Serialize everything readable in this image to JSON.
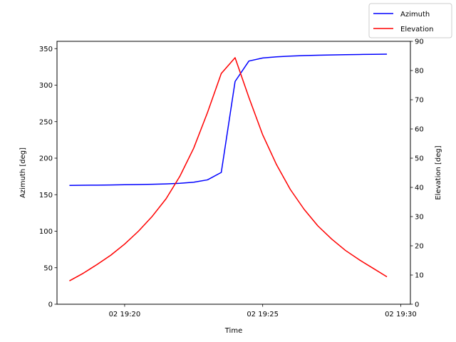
{
  "chart_data": {
    "type": "line",
    "title": "",
    "xlabel": "Time",
    "ylabel_left": "Azimuth [deg]",
    "ylabel_right": "Elevation [deg]",
    "x_unit": "minutes after 02 19:20",
    "xlim": [
      -2.45,
      10.35
    ],
    "ylim_left": [
      0,
      360
    ],
    "ylim_right": [
      0,
      90
    ],
    "x_ticks": [
      {
        "value": 0,
        "label": "02 19:20"
      },
      {
        "value": 5,
        "label": "02 19:25"
      },
      {
        "value": 10,
        "label": "02 19:30"
      }
    ],
    "y_ticks_left": [
      0,
      50,
      100,
      150,
      200,
      250,
      300,
      350
    ],
    "y_ticks_right": [
      0,
      10,
      20,
      30,
      40,
      50,
      60,
      70,
      80,
      90
    ],
    "grid": false,
    "legend_position": "top-right",
    "series": [
      {
        "name": "Azimuth",
        "axis": "left",
        "color": "#0000ff",
        "x": [
          -2.0,
          -1.5,
          -1.0,
          -0.5,
          0.0,
          0.5,
          1.0,
          1.5,
          2.0,
          2.5,
          3.0,
          3.5,
          4.0,
          4.5,
          5.0,
          5.5,
          6.0,
          6.5,
          7.0,
          7.5,
          8.0,
          8.5,
          9.0,
          9.5
        ],
        "values": [
          162.7,
          162.9,
          163.1,
          163.3,
          163.6,
          163.9,
          164.3,
          164.8,
          165.6,
          167.1,
          170.3,
          180.5,
          305,
          333,
          337.2,
          338.8,
          339.8,
          340.5,
          341.0,
          341.4,
          341.7,
          342.0,
          342.2,
          342.4
        ]
      },
      {
        "name": "Elevation",
        "axis": "right",
        "color": "#ff0000",
        "x": [
          -2.0,
          -1.5,
          -1.0,
          -0.5,
          0.0,
          0.5,
          1.0,
          1.5,
          2.0,
          2.5,
          3.0,
          3.5,
          4.0,
          4.5,
          5.0,
          5.5,
          6.0,
          6.5,
          7.0,
          7.5,
          8.0,
          8.5,
          9.0,
          9.5
        ],
        "values": [
          8.0,
          10.6,
          13.6,
          16.8,
          20.6,
          25.0,
          30.1,
          36.1,
          43.8,
          53.4,
          65.6,
          79.0,
          84.4,
          70.8,
          58.0,
          47.8,
          39.3,
          32.5,
          26.8,
          22.3,
          18.4,
          15.2,
          12.3,
          9.4
        ]
      }
    ]
  }
}
